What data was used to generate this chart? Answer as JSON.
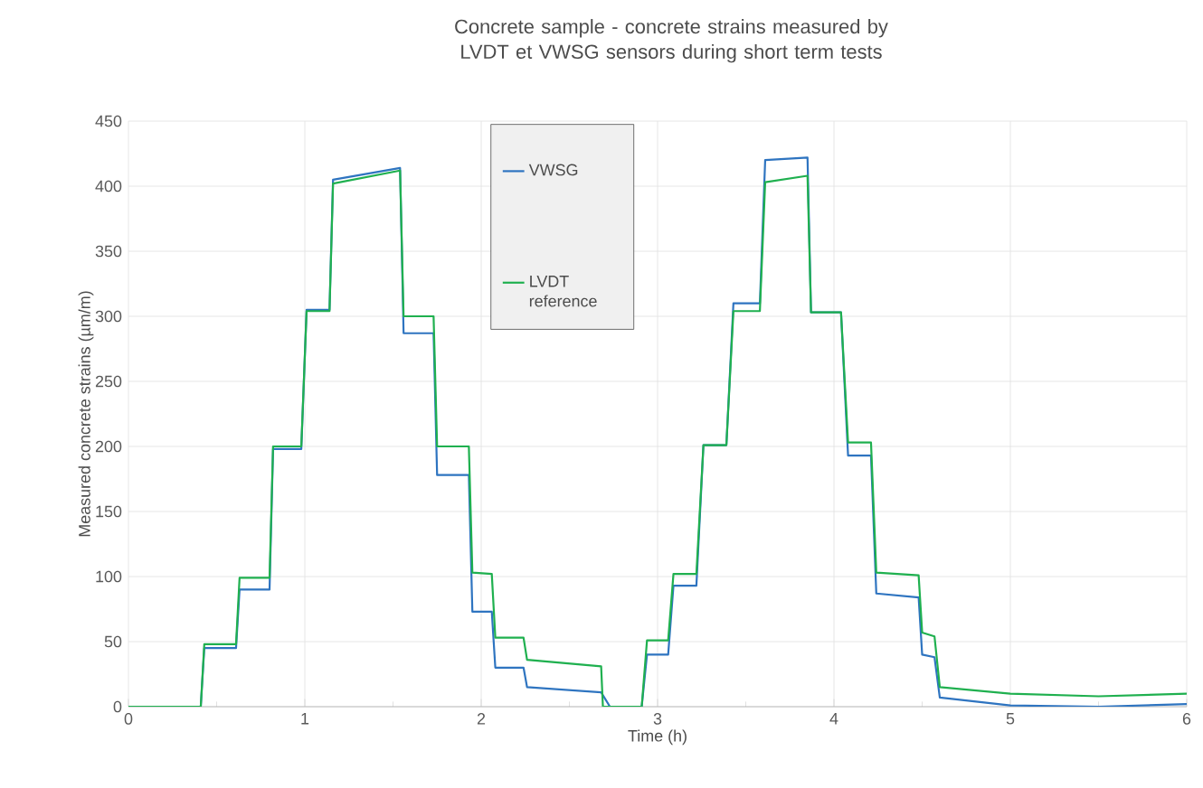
{
  "chart_data": {
    "type": "line",
    "title": "Concrete sample - concrete strains measured by LVDT et VWSG sensors during short term tests",
    "xlabel": "Time (h)",
    "ylabel": "Measured concrete strains (µm/m)",
    "xlim": [
      0,
      6
    ],
    "ylim": [
      0,
      450
    ],
    "xticks": [
      0,
      1,
      2,
      3,
      4,
      5,
      6
    ],
    "yticks": [
      0,
      50,
      100,
      150,
      200,
      250,
      300,
      350,
      400,
      450
    ],
    "grid": true,
    "legend": "top",
    "series": [
      {
        "name": "VWSG",
        "color": "#2e74c0",
        "x": [
          0,
          0.41,
          0.43,
          0.61,
          0.63,
          0.8,
          0.82,
          0.98,
          1.01,
          1.14,
          1.16,
          1.54,
          1.56,
          1.73,
          1.75,
          1.93,
          1.95,
          2.06,
          2.08,
          2.24,
          2.26,
          2.68,
          2.73,
          2.91,
          2.94,
          3.06,
          3.09,
          3.22,
          3.26,
          3.39,
          3.43,
          3.58,
          3.61,
          3.85,
          3.87,
          4.04,
          4.08,
          4.21,
          4.24,
          4.48,
          4.5,
          4.57,
          4.6,
          5.0,
          5.5,
          6.0
        ],
        "values": [
          0,
          0,
          45,
          45,
          90,
          90,
          198,
          198,
          305,
          305,
          405,
          414,
          287,
          287,
          178,
          178,
          73,
          73,
          30,
          30,
          15,
          11,
          0,
          0,
          40,
          40,
          93,
          93,
          201,
          201,
          310,
          310,
          420,
          422,
          303,
          303,
          193,
          193,
          87,
          84,
          40,
          38,
          7,
          1,
          0,
          2
        ]
      },
      {
        "name": "LVDT reference",
        "color": "#1fb04f",
        "x": [
          0,
          0.41,
          0.43,
          0.61,
          0.63,
          0.8,
          0.82,
          0.98,
          1.01,
          1.14,
          1.16,
          1.54,
          1.56,
          1.73,
          1.75,
          1.93,
          1.95,
          2.06,
          2.08,
          2.24,
          2.26,
          2.68,
          2.69,
          2.91,
          2.94,
          3.06,
          3.09,
          3.22,
          3.26,
          3.39,
          3.43,
          3.58,
          3.61,
          3.85,
          3.87,
          4.04,
          4.08,
          4.21,
          4.24,
          4.48,
          4.5,
          4.57,
          4.6,
          5.0,
          5.5,
          6.0
        ],
        "values": [
          0,
          0,
          48,
          48,
          99,
          99,
          200,
          200,
          304,
          304,
          402,
          412,
          300,
          300,
          200,
          200,
          103,
          102,
          53,
          53,
          36,
          31,
          0,
          0,
          51,
          51,
          102,
          102,
          201,
          201,
          304,
          304,
          403,
          408,
          303,
          303,
          203,
          203,
          103,
          101,
          57,
          54,
          15,
          10,
          8,
          10
        ]
      }
    ]
  }
}
